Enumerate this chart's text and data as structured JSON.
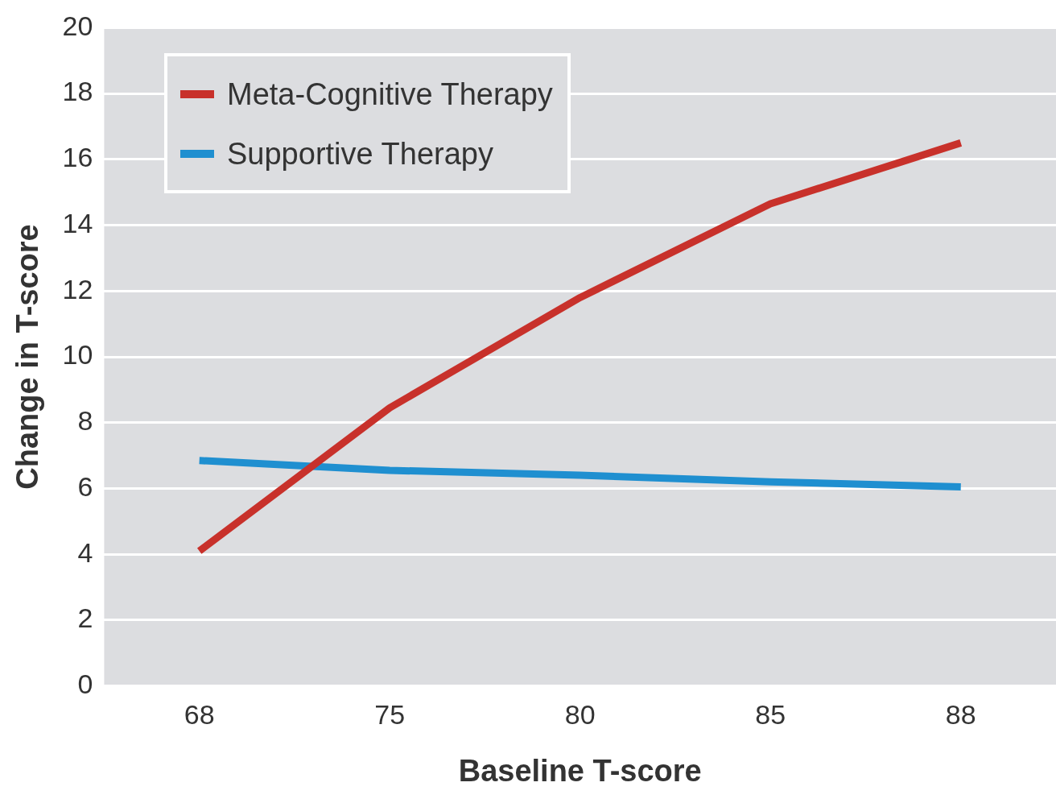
{
  "chart_data": {
    "type": "line",
    "xlabel": "Baseline T-score",
    "ylabel": "Change in T-score",
    "categories": [
      "68",
      "75",
      "80",
      "85",
      "88"
    ],
    "series": [
      {
        "name": "Meta-Cognitive Therapy",
        "color": "#c8312b",
        "values": [
          4.1,
          8.45,
          11.8,
          14.65,
          16.5
        ]
      },
      {
        "name": "Supportive Therapy",
        "color": "#1f8fd0",
        "values": [
          6.85,
          6.55,
          6.4,
          6.2,
          6.05
        ]
      }
    ],
    "ylim": [
      0,
      20
    ],
    "yticks": [
      0,
      2,
      4,
      6,
      8,
      10,
      12,
      14,
      16,
      18,
      20
    ],
    "grid": "y",
    "legend": "top left",
    "marker": "none",
    "line_style": "solid"
  }
}
